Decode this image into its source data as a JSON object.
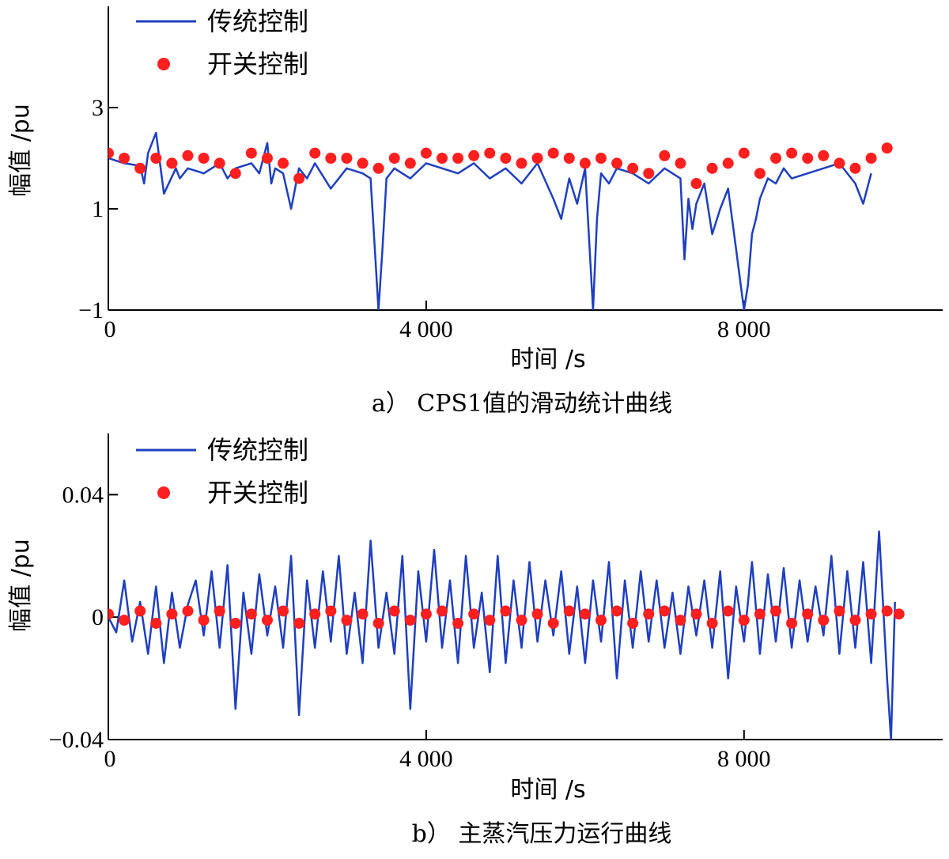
{
  "colors": {
    "traditional": "#1f3fbf",
    "switching": "#ff1f1f",
    "axis": "#000000"
  },
  "chart_data": [
    {
      "type": "line",
      "caption": "a）  CPS1值的滑动统计曲线",
      "xlabel": "时间 /s",
      "ylabel": "幅值 /pu",
      "xlim": [
        0,
        10500
      ],
      "ylim": [
        -1,
        5
      ],
      "xticks": [
        0,
        4000,
        8000
      ],
      "xtick_labels": [
        "0",
        "4 000",
        "8 000"
      ],
      "yticks": [
        -1,
        1,
        3
      ],
      "ytick_labels": [
        "−1",
        "1",
        "3"
      ],
      "legend_position": "top-left",
      "series": [
        {
          "name": "传统控制",
          "style": "line",
          "x": [
            0,
            200,
            400,
            450,
            500,
            600,
            650,
            700,
            850,
            900,
            1000,
            1200,
            1400,
            1500,
            1600,
            1800,
            1900,
            2000,
            2050,
            2100,
            2200,
            2300,
            2400,
            2500,
            2600,
            2800,
            3000,
            3200,
            3300,
            3350,
            3400,
            3450,
            3500,
            3600,
            3800,
            4000,
            4200,
            4400,
            4600,
            4800,
            5000,
            5200,
            5400,
            5600,
            5700,
            5800,
            5900,
            6000,
            6050,
            6100,
            6150,
            6200,
            6300,
            6400,
            6600,
            6800,
            7000,
            7200,
            7250,
            7300,
            7350,
            7400,
            7500,
            7600,
            7700,
            7800,
            7900,
            8000,
            8050,
            8100,
            8150,
            8200,
            8300,
            8400,
            8500,
            8600,
            8800,
            9000,
            9200,
            9400,
            9500,
            9600
          ],
          "y": [
            2.0,
            1.9,
            1.85,
            1.5,
            2.1,
            2.5,
            1.9,
            1.3,
            1.8,
            1.6,
            1.8,
            1.7,
            1.9,
            1.6,
            1.8,
            1.9,
            1.7,
            2.3,
            1.5,
            1.8,
            1.7,
            1.0,
            1.8,
            1.6,
            1.9,
            1.4,
            1.8,
            1.7,
            1.6,
            0.3,
            -1.0,
            0.2,
            1.6,
            1.8,
            1.6,
            1.9,
            1.8,
            1.7,
            1.9,
            1.6,
            1.8,
            1.5,
            1.9,
            1.2,
            0.8,
            1.6,
            1.1,
            1.8,
            0.4,
            -1.0,
            0.8,
            1.7,
            1.5,
            1.8,
            1.7,
            1.5,
            1.8,
            1.6,
            0.0,
            1.2,
            0.6,
            1.1,
            1.5,
            0.5,
            1.0,
            1.4,
            0.2,
            -1.0,
            -0.5,
            0.5,
            0.8,
            1.2,
            1.6,
            1.5,
            1.8,
            1.6,
            1.7,
            1.8,
            1.9,
            1.5,
            1.1,
            1.7
          ]
        },
        {
          "name": "开关控制",
          "style": "markers",
          "x": [
            0,
            200,
            400,
            600,
            800,
            1000,
            1200,
            1400,
            1600,
            1800,
            2000,
            2200,
            2400,
            2600,
            2800,
            3000,
            3200,
            3400,
            3600,
            3800,
            4000,
            4200,
            4400,
            4600,
            4800,
            5000,
            5200,
            5400,
            5600,
            5800,
            6000,
            6200,
            6400,
            6600,
            6800,
            7000,
            7200,
            7400,
            7600,
            7800,
            8000,
            8200,
            8400,
            8600,
            8800,
            9000,
            9200,
            9400,
            9600,
            9800
          ],
          "y": [
            2.1,
            2.0,
            1.8,
            2.0,
            1.9,
            2.05,
            2.0,
            1.9,
            1.7,
            2.1,
            2.0,
            1.9,
            1.6,
            2.1,
            2.0,
            2.0,
            1.9,
            1.8,
            2.0,
            1.9,
            2.1,
            2.0,
            2.0,
            2.05,
            2.1,
            2.0,
            1.9,
            2.0,
            2.1,
            2.0,
            1.9,
            2.0,
            1.9,
            1.8,
            1.7,
            2.05,
            1.9,
            1.5,
            1.8,
            1.9,
            2.1,
            1.7,
            2.0,
            2.1,
            2.0,
            2.05,
            1.9,
            1.8,
            2.0,
            2.2
          ]
        }
      ]
    },
    {
      "type": "line",
      "caption": "b）  主蒸汽压力运行曲线",
      "xlabel": "时间 /s",
      "ylabel": "幅值 /pu",
      "xlim": [
        0,
        10500
      ],
      "ylim": [
        -0.04,
        0.06
      ],
      "xticks": [
        0,
        4000,
        8000
      ],
      "xtick_labels": [
        "0",
        "4 000",
        "8 000"
      ],
      "yticks": [
        -0.04,
        0,
        0.04
      ],
      "ytick_labels": [
        "−0.04",
        "0",
        "0.04"
      ],
      "legend_position": "top-left",
      "series": [
        {
          "name": "传统控制",
          "style": "line",
          "x": [
            0,
            100,
            200,
            300,
            400,
            500,
            600,
            700,
            800,
            900,
            1000,
            1100,
            1200,
            1300,
            1400,
            1500,
            1600,
            1700,
            1800,
            1900,
            2000,
            2100,
            2200,
            2300,
            2400,
            2500,
            2600,
            2700,
            2800,
            2900,
            3000,
            3100,
            3200,
            3300,
            3400,
            3500,
            3600,
            3700,
            3800,
            3900,
            4000,
            4100,
            4200,
            4300,
            4400,
            4500,
            4600,
            4700,
            4800,
            4900,
            5000,
            5100,
            5200,
            5300,
            5400,
            5500,
            5600,
            5700,
            5800,
            5900,
            6000,
            6100,
            6200,
            6300,
            6400,
            6500,
            6600,
            6700,
            6800,
            6900,
            7000,
            7100,
            7200,
            7300,
            7400,
            7500,
            7600,
            7700,
            7800,
            7900,
            8000,
            8100,
            8200,
            8300,
            8400,
            8500,
            8600,
            8700,
            8800,
            8900,
            9000,
            9100,
            9200,
            9300,
            9400,
            9500,
            9600,
            9700,
            9800,
            9850,
            9900
          ],
          "y": [
            0.0,
            -0.005,
            0.012,
            -0.008,
            0.005,
            -0.012,
            0.01,
            -0.015,
            0.008,
            -0.01,
            0.004,
            0.012,
            -0.006,
            0.015,
            -0.01,
            0.017,
            -0.03,
            0.008,
            -0.012,
            0.014,
            -0.006,
            0.01,
            -0.01,
            0.02,
            -0.032,
            0.012,
            -0.01,
            0.015,
            -0.008,
            0.02,
            -0.012,
            0.008,
            -0.015,
            0.025,
            -0.01,
            0.008,
            -0.012,
            0.02,
            -0.03,
            0.015,
            -0.008,
            0.022,
            -0.01,
            0.012,
            -0.015,
            0.02,
            -0.01,
            0.008,
            -0.018,
            0.02,
            -0.015,
            0.012,
            -0.01,
            0.018,
            -0.008,
            0.012,
            -0.006,
            0.015,
            -0.012,
            0.01,
            -0.015,
            0.012,
            -0.008,
            0.018,
            -0.02,
            0.012,
            -0.01,
            0.015,
            -0.008,
            0.012,
            -0.01,
            0.008,
            -0.012,
            0.01,
            -0.006,
            0.012,
            -0.01,
            0.015,
            -0.02,
            0.01,
            -0.008,
            0.018,
            -0.012,
            0.014,
            -0.008,
            0.016,
            -0.01,
            0.012,
            -0.008,
            0.01,
            -0.006,
            0.02,
            -0.012,
            0.015,
            -0.01,
            0.018,
            -0.015,
            0.028,
            -0.02,
            -0.04,
            0.005
          ]
        },
        {
          "name": "开关控制",
          "style": "markers",
          "x": [
            0,
            200,
            400,
            600,
            800,
            1000,
            1200,
            1400,
            1600,
            1800,
            2000,
            2200,
            2400,
            2600,
            2800,
            3000,
            3200,
            3400,
            3600,
            3800,
            4000,
            4200,
            4400,
            4600,
            4800,
            5000,
            5200,
            5400,
            5600,
            5800,
            6000,
            6200,
            6400,
            6600,
            6800,
            7000,
            7200,
            7400,
            7600,
            7800,
            8000,
            8200,
            8400,
            8600,
            8800,
            9000,
            9200,
            9400,
            9600,
            9800,
            9950
          ],
          "y": [
            0.001,
            -0.001,
            0.002,
            -0.002,
            0.001,
            0.002,
            -0.001,
            0.002,
            -0.002,
            0.001,
            -0.001,
            0.002,
            -0.002,
            0.001,
            0.002,
            -0.001,
            0.001,
            -0.002,
            0.002,
            -0.001,
            0.001,
            0.002,
            -0.002,
            0.001,
            -0.001,
            0.002,
            -0.001,
            0.001,
            -0.002,
            0.002,
            0.001,
            -0.001,
            0.002,
            -0.002,
            0.001,
            0.002,
            -0.001,
            0.001,
            -0.002,
            0.002,
            -0.001,
            0.001,
            0.002,
            -0.002,
            0.001,
            -0.001,
            0.002,
            -0.001,
            0.001,
            0.002,
            0.001
          ]
        }
      ]
    }
  ]
}
